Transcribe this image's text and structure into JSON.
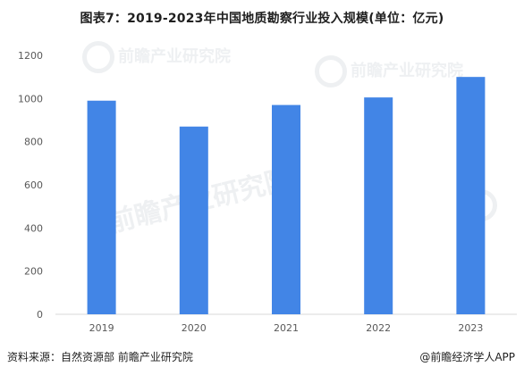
{
  "chart_data": {
    "type": "bar",
    "title": "图表7：2019-2023年中国地质勘察行业投入规模(单位：亿元)",
    "categories": [
      "2019",
      "2020",
      "2021",
      "2022",
      "2023"
    ],
    "values": [
      990,
      870,
      970,
      1005,
      1100
    ],
    "ylim": [
      0,
      1200
    ],
    "yticks": [
      0,
      200,
      400,
      600,
      800,
      1000,
      1200
    ],
    "xlabel": "",
    "ylabel": "",
    "grid": false,
    "bar_color": "#4285e6"
  },
  "footer": {
    "source": "资料来源：自然资源部 前瞻产业研究院",
    "credit": "@前瞻经济学人APP"
  },
  "watermark": {
    "text": "前瞻产业研究院"
  }
}
